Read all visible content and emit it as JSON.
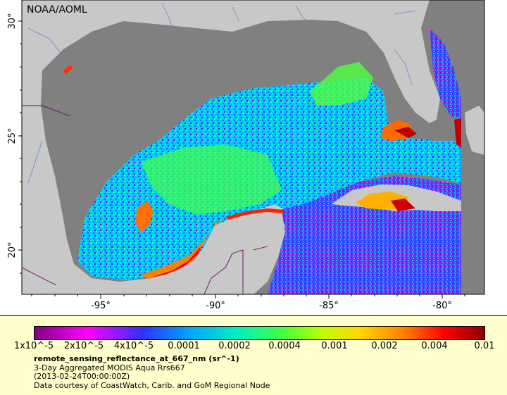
{
  "map": {
    "credit": "NOAA/AOML",
    "lat_labels": [
      "30°",
      "25°",
      "20°"
    ],
    "lon_labels": [
      "-95°",
      "-90°",
      "-85°",
      "-80°"
    ]
  },
  "legend": {
    "ticks": [
      "1x10^-5",
      "2x10^-5",
      "4x10^-5",
      "0.0001",
      "0.0002",
      "0.0004",
      "0.001",
      "0.002",
      "0.004",
      "0.01"
    ],
    "title": "remote_sensing_reflectance_at_667_nm (sr^-1)",
    "line1": "3-Day Aggregated MODIS Aqua Rrs667",
    "line2": "(2013-02-24T00:00:00Z)",
    "line3": "Data courtesy of CoastWatch, Carib. and GoM Regional Node"
  },
  "colors": {
    "land": "#c8c8c8",
    "no_data": "#808080",
    "legend_bg": "#ffffcc"
  }
}
